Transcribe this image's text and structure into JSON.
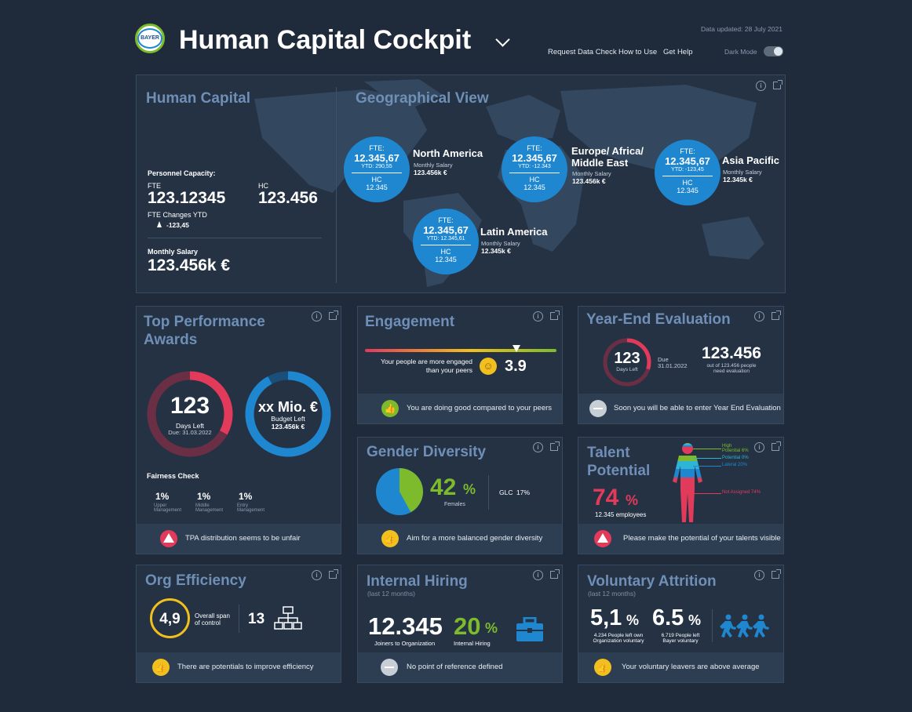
{
  "header": {
    "logo_text": "BAYER",
    "title": "Human Capital Cockpit",
    "updated": "Data updated: 28 July 2021",
    "links": [
      "Request Data Check",
      "How to Use",
      "Get Help"
    ],
    "dark_mode_label": "Dark Mode"
  },
  "human_capital": {
    "title": "Human Capital",
    "personnel_label": "Personnel Capacity:",
    "fte_label": "FTE",
    "fte_value": "123.12345",
    "hc_label": "HC",
    "hc_value": "123.456",
    "fte_changes_label": "FTE Changes YTD",
    "fte_changes_value": "-123,45",
    "salary_label": "Monthly Salary",
    "salary_value": "123.456k €"
  },
  "geo": {
    "title": "Geographical View",
    "regions": [
      {
        "name": "North America",
        "fte_label": "FTE:",
        "fte": "12.345,67",
        "ytd": "YTD: 290,55",
        "hc_label": "HC",
        "hc": "12.345",
        "salary_label": "Monthly Salary",
        "salary": "123.456k €"
      },
      {
        "name": "Europe/ Africa/\nMiddle East",
        "fte_label": "FTE:",
        "fte": "12.345,67",
        "ytd": "YTD: -12.343",
        "hc_label": "HC",
        "hc": "12.345",
        "salary_label": "Monthly Salary",
        "salary": "123.456k €"
      },
      {
        "name": "Asia Pacific",
        "fte_label": "FTE:",
        "fte": "12.345,67",
        "ytd": "YTD: -123,45",
        "hc_label": "HC",
        "hc": "12.345",
        "salary_label": "Monthly Salary",
        "salary": "12.345k €"
      },
      {
        "name": "Latin America",
        "fte_label": "FTE:",
        "fte": "12.345,67",
        "ytd": "YTD: 12.345,61",
        "hc_label": "HC",
        "hc": "12.345",
        "salary_label": "Monthly Salary",
        "salary": "12.345k €"
      }
    ]
  },
  "awards": {
    "title": "Top Performance Awards",
    "days_value": "123",
    "days_label": "Days Left",
    "days_due": "Due: 31.03.2022",
    "budget_value": "xx Mio. €",
    "budget_label": "Budget Left",
    "budget_sub": "123.456k €",
    "fairness_label": "Fairness Check",
    "fairness": [
      {
        "value": "1%",
        "label": "Upper\nManagement"
      },
      {
        "value": "1%",
        "label": "Middle\nManagement"
      },
      {
        "value": "1%",
        "label": "Entry\nManagement"
      }
    ],
    "footer": "TPA distribution seems to be unfair",
    "days_fraction": 0.33,
    "budget_fraction": 0.92
  },
  "engagement": {
    "title": "Engagement",
    "text": "Your people are more engaged\nthan your peers",
    "score": "3.9",
    "marker_fraction": 0.79,
    "footer": "You are doing good compared to your peers"
  },
  "yearend": {
    "title": "Year-End Evaluation",
    "days_value": "123",
    "days_label": "Days Left",
    "due_label": "Due",
    "due_date": "31.01.2022",
    "count": "123.456",
    "count_text": "out of 123.456 people\nneed evaluation",
    "footer": "Soon you will be able to enter Year End Evaluation",
    "fraction": 0.3
  },
  "gender": {
    "title": "Gender Diversity",
    "female_pct": "42",
    "pct_sign": "%",
    "female_label": "Females",
    "glc_label": "GLC",
    "glc_value": "17%",
    "footer": "Aim for a more balanced gender diversity",
    "female_fraction": 0.42,
    "colors": {
      "female": "#7dbb2c",
      "male": "#1e87d0"
    }
  },
  "talent": {
    "title": "Talent\nPotential",
    "pct": "74",
    "pct_sign": "%",
    "employees": "12.345 employees",
    "legend": [
      {
        "label": "High\nPotential 6%",
        "color": "#7dbb2c"
      },
      {
        "label": "Potential 0%",
        "color": "#2db4d6"
      },
      {
        "label": "Lateral 20%",
        "color": "#1e87d0"
      },
      {
        "label": "Not Assigned 74%",
        "color": "#e23a5a"
      }
    ],
    "footer": "Please make the potential of your talents visible"
  },
  "org": {
    "title": "Org Efficiency",
    "span_value": "4,9",
    "span_label": "Overall span\nof control",
    "levels_value": "13",
    "footer": "There are potentials to improve efficiency"
  },
  "hiring": {
    "title": "Internal Hiring",
    "subtitle": "(last 12 months)",
    "joiners_value": "12.345",
    "joiners_label": "Joiners to Organization",
    "internal_value": "20",
    "pct_sign": "%",
    "internal_label": "Internal Hiring",
    "footer": "No point of reference defined"
  },
  "attrition": {
    "title": "Voluntary Attrition",
    "subtitle": "(last 12 months)",
    "org_value": "5,1",
    "org_text": "4.234 People left own\nOrganization voluntary",
    "bayer_value": "6.5",
    "bayer_text": "6.719 People left\nBayer voluntary",
    "pct_sign": "%",
    "footer": "Your voluntary leavers are above average"
  },
  "colors": {
    "accent": "#1e87d0",
    "green": "#7dbb2c",
    "red": "#e23a5a",
    "yellow": "#f2c01e",
    "title": "#6f8fb6"
  },
  "icons": [
    "info-icon",
    "expand-icon",
    "thumbs-up-icon",
    "warning-icon",
    "neutral-icon",
    "smiley-icon",
    "briefcase-icon",
    "org-chart-icon",
    "running-people-icon",
    "human-body-icon",
    "chevron-down-icon"
  ]
}
